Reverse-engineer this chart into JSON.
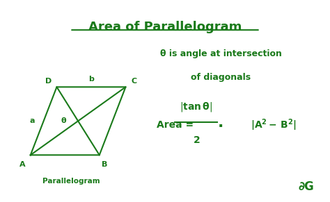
{
  "title": "Area of Parallelogram",
  "title_color": "#1a7a1a",
  "bg_color": "#ffffff",
  "border_color": "#4db84d",
  "text_color": "#1a7a1a",
  "label_a": "a",
  "label_b": "b",
  "label_theta": "θ",
  "label_parallelogram": "Parallelogram",
  "theta_line1": "θ is angle at intersection",
  "theta_line2": "of diagonals",
  "gfg_logo": "∂G",
  "A": [
    0.09,
    0.23
  ],
  "B": [
    0.3,
    0.23
  ],
  "C": [
    0.38,
    0.57
  ],
  "D": [
    0.17,
    0.57
  ]
}
